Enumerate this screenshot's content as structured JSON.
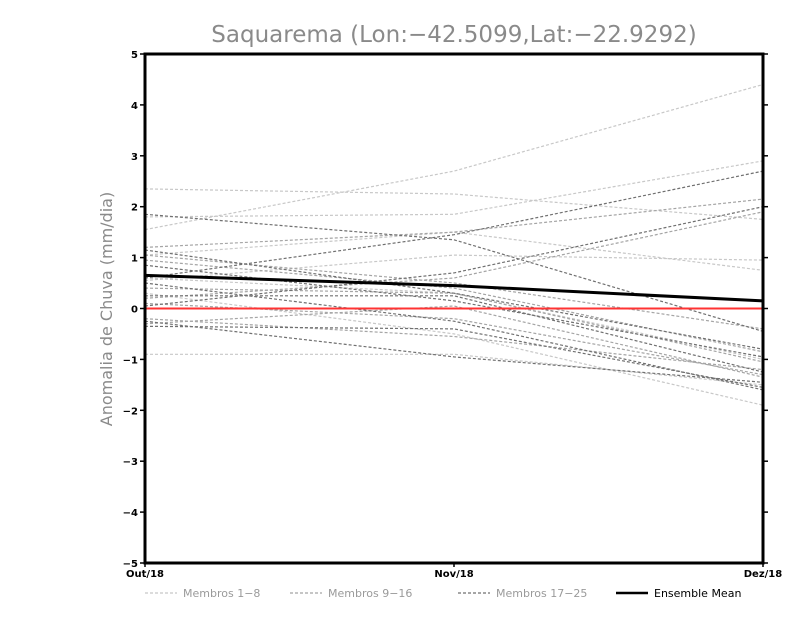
{
  "chart_data": {
    "type": "line",
    "title": "Saquarema (Lon:−42.5099,Lat:−22.9292)",
    "xlabel": "",
    "ylabel": "Anomalia de Chuva (mm/dia)",
    "categories": [
      "Out/18",
      "Nov/18",
      "Dez/18"
    ],
    "ylim": [
      -5,
      5
    ],
    "yticks": [
      -5,
      -4,
      -3,
      -2,
      -1,
      0,
      1,
      2,
      3,
      4,
      5
    ],
    "grid": false,
    "zero_line": {
      "value": 0,
      "color": "#ff3333"
    },
    "legend_position": "bottom",
    "groups": [
      {
        "name": "Membros 1-8",
        "color": "#c8c8c8",
        "style": "dashed",
        "series": [
          [
            1.55,
            2.7,
            4.4
          ],
          [
            2.35,
            2.25,
            1.75
          ],
          [
            1.8,
            1.85,
            2.9
          ],
          [
            1.05,
            1.5,
            0.75
          ],
          [
            0.55,
            1.05,
            0.95
          ],
          [
            0.3,
            -0.5,
            -1.9
          ],
          [
            -0.9,
            -0.9,
            -1.5
          ],
          [
            0.6,
            0.3,
            -1.0
          ]
        ]
      },
      {
        "name": "Membros 9-16",
        "color": "#a5a5a5",
        "style": "dashed",
        "series": [
          [
            1.2,
            1.5,
            2.15
          ],
          [
            0.2,
            0.6,
            1.9
          ],
          [
            0.95,
            0.4,
            -0.85
          ],
          [
            -0.2,
            -0.55,
            -1.2
          ],
          [
            0.4,
            0.3,
            -1.05
          ],
          [
            -0.3,
            0.05,
            -1.35
          ],
          [
            1.05,
            0.5,
            -0.4
          ],
          [
            0.1,
            -0.2,
            -1.3
          ]
        ]
      },
      {
        "name": "Membros 17-25",
        "color": "#707070",
        "style": "dashed",
        "series": [
          [
            1.85,
            1.35,
            -0.45
          ],
          [
            0.6,
            1.45,
            2.7
          ],
          [
            0.05,
            0.7,
            2.0
          ],
          [
            1.15,
            0.3,
            -0.8
          ],
          [
            0.25,
            0.25,
            -1.25
          ],
          [
            -0.35,
            -0.4,
            -1.55
          ],
          [
            -0.25,
            -0.95,
            -1.45
          ],
          [
            0.85,
            0.15,
            -0.95
          ],
          [
            0.5,
            -0.25,
            -1.6
          ]
        ]
      },
      {
        "name": "Ensemble Mean",
        "color": "#000000",
        "style": "solid",
        "series": [
          [
            0.65,
            0.45,
            0.15
          ]
        ]
      }
    ]
  }
}
